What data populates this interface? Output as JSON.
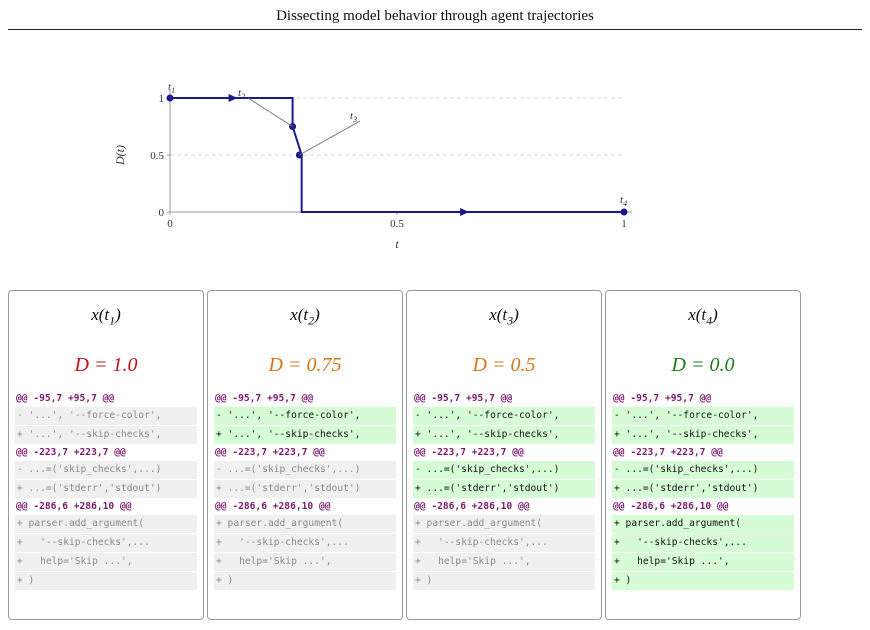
{
  "page": {
    "header": "Dissecting model behavior through agent trajectories"
  },
  "chart_data": {
    "type": "line",
    "xlabel": "t",
    "ylabel": "D(t)",
    "xlim": [
      0,
      1
    ],
    "ylim": [
      0,
      1
    ],
    "x_ticks": [
      "0",
      "0.5",
      "1"
    ],
    "y_ticks": [
      "0",
      "0.5",
      "1"
    ],
    "series": [
      {
        "x": [
          0,
          0.27,
          0.27,
          0.29,
          0.29,
          1
        ],
        "y": [
          1,
          1,
          0.75,
          0.5,
          0,
          0
        ]
      }
    ],
    "points": [
      {
        "label": "t",
        "sub": "1",
        "x": 0,
        "y": 1
      },
      {
        "label": "t",
        "sub": "2",
        "x": 0.27,
        "y": 0.75
      },
      {
        "label": "t",
        "sub": "3",
        "x": 0.285,
        "y": 0.5
      },
      {
        "label": "t",
        "sub": "4",
        "x": 1,
        "y": 0
      }
    ],
    "grid_y": [
      0.5,
      1
    ],
    "line_color": "#1a1a8c"
  },
  "panels": [
    {
      "var": "x",
      "sub": "1",
      "d_label": "D = 1.0",
      "d_color": "#c0141a"
    },
    {
      "var": "x",
      "sub": "2",
      "d_label": "D = 0.75",
      "d_color": "#d4761a"
    },
    {
      "var": "x",
      "sub": "3",
      "d_label": "D = 0.5",
      "d_color": "#d4761a"
    },
    {
      "var": "x",
      "sub": "4",
      "d_label": "D = 0.0",
      "d_color": "#1a7a1a"
    }
  ],
  "diff": {
    "hunks": [
      {
        "header": "@@ -95,7 +95,7 @@",
        "lines": [
          "- '...', '--force-color',",
          "+ '...', '--skip-checks',"
        ],
        "highlight": [
          false,
          true,
          true,
          true
        ]
      },
      {
        "header": "@@ -223,7 +223,7 @@",
        "lines": [
          "- ...=('skip_checks',...)",
          "+ ...=('stderr','stdout')"
        ],
        "highlight": [
          false,
          false,
          true,
          true
        ]
      },
      {
        "header": "@@ -286,6 +286,10 @@",
        "lines": [
          "+ parser.add_argument(",
          "+   '--skip-checks',...",
          "+   help='Skip ...',",
          "+ )"
        ],
        "highlight": [
          false,
          false,
          false,
          true
        ]
      }
    ]
  }
}
